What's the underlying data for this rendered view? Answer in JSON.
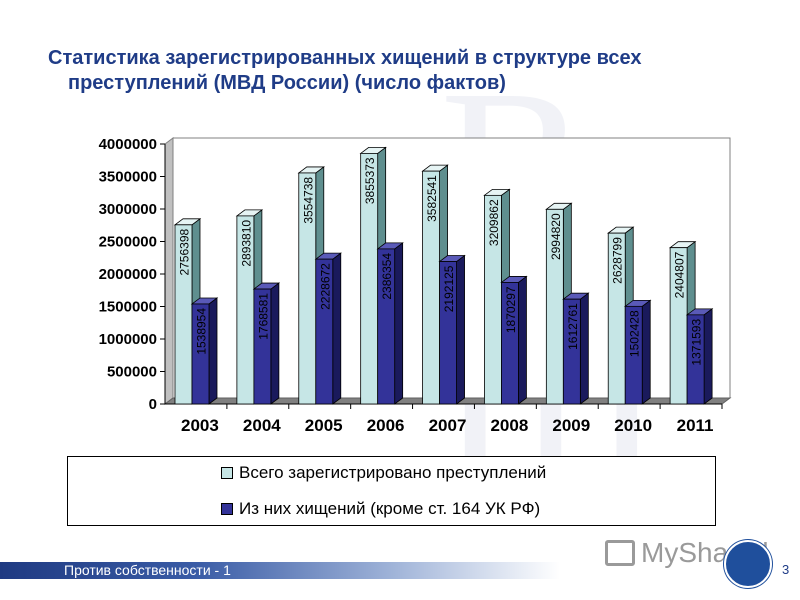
{
  "title": {
    "line1": "Статистика зарегистрированных хищений в структуре всех",
    "line2": "преступлений (МВД России) (число фактов)"
  },
  "colors": {
    "title": "#1f3c87",
    "series_total": "#c6e6e6",
    "series_thefts": "#333399",
    "footer": "#1f3a82"
  },
  "chart_data": {
    "type": "bar",
    "categories": [
      "2003",
      "2004",
      "2005",
      "2006",
      "2007",
      "2008",
      "2009",
      "2010",
      "2011"
    ],
    "series": [
      {
        "name": "Всего зарегистрировано преступлений",
        "values": [
          2756398,
          2893810,
          3554738,
          3855373,
          3582541,
          3209862,
          2994820,
          2628799,
          2404807
        ],
        "labels": [
          "2756398",
          "2893810",
          "3554738",
          "3855373",
          "3582541",
          "3209862",
          "2994820",
          "2628799",
          "2404807"
        ]
      },
      {
        "name": "Из них хищений (кроме ст. 164 УК РФ)",
        "values": [
          1538954,
          1768581,
          2228672,
          2386354,
          2192125,
          1870297,
          1612761,
          1502428,
          1371593
        ],
        "labels": [
          "1538954",
          "1768581",
          "2228672",
          "2386354",
          "2192125",
          "1870297",
          "1612761",
          "1502428",
          "1371593"
        ]
      }
    ],
    "yticks": [
      "0",
      "500000",
      "1000000",
      "1500000",
      "2000000",
      "2500000",
      "3000000",
      "3500000",
      "4000000"
    ],
    "ylim": [
      0,
      4000000
    ],
    "grid": false,
    "legend_position": "bottom"
  },
  "footer": {
    "text": "Против собственности - 1",
    "page": "3",
    "brand": "MyShared"
  }
}
